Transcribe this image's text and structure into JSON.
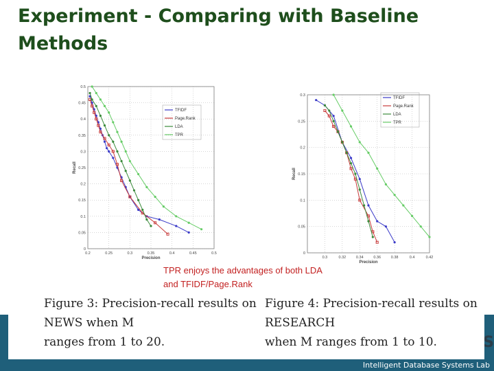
{
  "slide": {
    "title": "Experiment - Comparing with Baseline Methods",
    "note_line1": "TPR enjoys the advantages of both LDA",
    "note_line2": "and TFIDF/Page.Rank",
    "footer": "Intelligent Database Systems Lab",
    "logo_fragment": "S",
    "colors": {
      "title": "#1e4e1c",
      "note": "#c21f1f",
      "bar": "#1f5f7a"
    }
  },
  "figures": {
    "fig3_caption_line1": "Figure 3: Precision-recall results on NEWS when M",
    "fig3_caption_line2": "ranges from 1 to 20.",
    "fig4_caption_line1": "Figure 4: Precision-recall results on RESEARCH",
    "fig4_caption_line2": "when M ranges from 1 to 10."
  },
  "chart_data": [
    {
      "type": "line",
      "xlabel": "Precision",
      "ylabel": "Recall",
      "xlim": [
        0.2,
        0.5
      ],
      "ylim": [
        0,
        0.5
      ],
      "xticks": [
        "0.2",
        "0.25",
        "0.3",
        "0.35",
        "0.4",
        "0.45",
        "0.5"
      ],
      "yticks": [
        "0",
        "0.05",
        "0.1",
        "0.15",
        "0.2",
        "0.25",
        "0.3",
        "0.35",
        "0.4",
        "0.45",
        "0.5"
      ],
      "legend_position": "top-right",
      "series": [
        {
          "name": "TFIDF",
          "color": "#3a3ac8",
          "marker": "+",
          "x": [
            0.205,
            0.21,
            0.215,
            0.22,
            0.225,
            0.23,
            0.235,
            0.24,
            0.245,
            0.25,
            0.26,
            0.27,
            0.28,
            0.29,
            0.3,
            0.32,
            0.34,
            0.37,
            0.41,
            0.44
          ],
          "y": [
            0.47,
            0.45,
            0.43,
            0.41,
            0.39,
            0.37,
            0.35,
            0.33,
            0.31,
            0.3,
            0.28,
            0.25,
            0.22,
            0.19,
            0.16,
            0.12,
            0.1,
            0.09,
            0.07,
            0.05
          ]
        },
        {
          "name": "Page.Rank",
          "color": "#c83a3a",
          "marker": "s",
          "x": [
            0.205,
            0.21,
            0.215,
            0.22,
            0.225,
            0.23,
            0.24,
            0.25,
            0.26,
            0.27,
            0.28,
            0.3,
            0.33,
            0.36,
            0.39
          ],
          "y": [
            0.46,
            0.44,
            0.42,
            0.4,
            0.38,
            0.36,
            0.34,
            0.32,
            0.3,
            0.26,
            0.21,
            0.16,
            0.11,
            0.08,
            0.045
          ]
        },
        {
          "name": "LDA",
          "color": "#3a8a3a",
          "marker": "x",
          "x": [
            0.205,
            0.21,
            0.22,
            0.23,
            0.24,
            0.25,
            0.26,
            0.27,
            0.28,
            0.29,
            0.3,
            0.31,
            0.32,
            0.33,
            0.34,
            0.35
          ],
          "y": [
            0.48,
            0.46,
            0.44,
            0.41,
            0.38,
            0.35,
            0.33,
            0.3,
            0.27,
            0.24,
            0.21,
            0.18,
            0.15,
            0.12,
            0.09,
            0.07
          ]
        },
        {
          "name": "TPR",
          "color": "#66cc66",
          "marker": "*",
          "x": [
            0.21,
            0.22,
            0.23,
            0.24,
            0.25,
            0.26,
            0.27,
            0.28,
            0.29,
            0.3,
            0.32,
            0.34,
            0.36,
            0.38,
            0.41,
            0.44,
            0.47
          ],
          "y": [
            0.5,
            0.48,
            0.46,
            0.44,
            0.42,
            0.39,
            0.36,
            0.33,
            0.3,
            0.27,
            0.23,
            0.19,
            0.16,
            0.13,
            0.1,
            0.08,
            0.06
          ]
        }
      ]
    },
    {
      "type": "line",
      "xlabel": "Precision",
      "ylabel": "Recall",
      "xlim": [
        0.28,
        0.42
      ],
      "ylim": [
        0,
        0.3
      ],
      "xticks": [
        "0.3",
        "0.32",
        "0.34",
        "0.36",
        "0.38",
        "0.4",
        "0.42"
      ],
      "yticks": [
        "0",
        "0.05",
        "0.1",
        "0.15",
        "0.2",
        "0.25",
        "0.3"
      ],
      "legend_position": "top-right",
      "series": [
        {
          "name": "TFIDF",
          "color": "#3a3ac8",
          "marker": "+",
          "x": [
            0.29,
            0.3,
            0.31,
            0.32,
            0.33,
            0.34,
            0.35,
            0.36,
            0.37,
            0.38
          ],
          "y": [
            0.29,
            0.28,
            0.26,
            0.21,
            0.18,
            0.14,
            0.09,
            0.06,
            0.05,
            0.02
          ]
        },
        {
          "name": "Page.Rank",
          "color": "#c83a3a",
          "marker": "s",
          "x": [
            0.3,
            0.305,
            0.31,
            0.315,
            0.32,
            0.325,
            0.33,
            0.335,
            0.34,
            0.35,
            0.355,
            0.36
          ],
          "y": [
            0.27,
            0.26,
            0.24,
            0.23,
            0.21,
            0.19,
            0.16,
            0.14,
            0.1,
            0.07,
            0.04,
            0.02
          ]
        },
        {
          "name": "LDA",
          "color": "#3a8a3a",
          "marker": "x",
          "x": [
            0.3,
            0.305,
            0.31,
            0.315,
            0.32,
            0.325,
            0.33,
            0.335,
            0.34,
            0.345,
            0.35,
            0.355
          ],
          "y": [
            0.28,
            0.27,
            0.25,
            0.23,
            0.21,
            0.19,
            0.17,
            0.15,
            0.12,
            0.09,
            0.06,
            0.03
          ]
        },
        {
          "name": "TPR",
          "color": "#66cc66",
          "marker": "*",
          "x": [
            0.31,
            0.32,
            0.33,
            0.34,
            0.35,
            0.36,
            0.37,
            0.38,
            0.39,
            0.4,
            0.41,
            0.42
          ],
          "y": [
            0.3,
            0.27,
            0.24,
            0.21,
            0.19,
            0.16,
            0.13,
            0.11,
            0.09,
            0.07,
            0.05,
            0.03
          ]
        }
      ]
    }
  ]
}
